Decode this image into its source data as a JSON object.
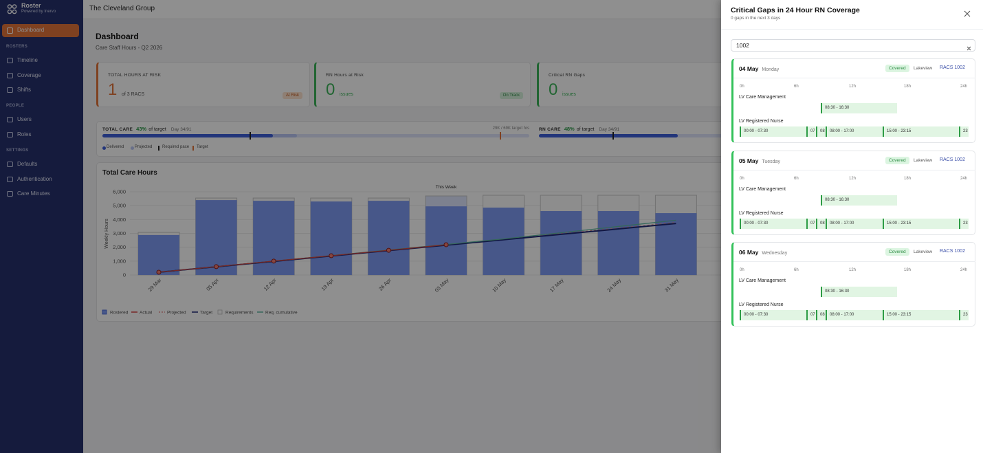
{
  "sidebar": {
    "brand": "Roster",
    "tagline": "Powered by Inervo",
    "active": "Dashboard",
    "groups": [
      {
        "heading": "ROSTERS",
        "items": [
          "Timeline",
          "Coverage",
          "Shifts"
        ]
      },
      {
        "heading": "PEOPLE",
        "items": [
          "Users",
          "Roles"
        ]
      },
      {
        "heading": "SETTINGS",
        "items": [
          "Defaults",
          "Authentication",
          "Care Minutes"
        ]
      }
    ]
  },
  "header": {
    "org": "The Cleveland Group"
  },
  "dashboard": {
    "title": "Dashboard",
    "subtitle": "Care Staff Hours - Q2 2026",
    "cards": [
      {
        "label": "TOTAL HOURS AT RISK",
        "value": 1,
        "detail": "of 3 RACS",
        "badge": "At Risk"
      },
      {
        "label": "RN Hours at Risk",
        "value": 0,
        "detail": "issues",
        "badge": "On Track"
      },
      {
        "label": "Critical RN Gaps",
        "value": 0,
        "detail": "issues"
      }
    ],
    "progress": [
      {
        "label": "TOTAL CARE",
        "percent": "43%",
        "suffix": "of target",
        "day": "Day 34/91",
        "target": "29K / 69K target hrs"
      },
      {
        "label": "RN CARE",
        "percent": "48%",
        "suffix": "of target",
        "day": "Day 34/91"
      }
    ],
    "progress_legend": [
      "Delivered",
      "Projected",
      "Required pace",
      "Target"
    ],
    "chart": {
      "type": "bar",
      "title": "Total Care Hours",
      "ylabel": "Weekly Hours",
      "annotation": "This Week",
      "categories": [
        "29 Mar",
        "05 Apr",
        "12 Apr",
        "19 Apr",
        "26 Apr",
        "03 May",
        "10 May",
        "17 May",
        "24 May",
        "31 May"
      ],
      "ylim": [
        0,
        6000
      ],
      "yticks": [
        0,
        {
          "value": 1000,
          "label": "1,000"
        },
        {
          "value": 2000,
          "label": "2,000"
        },
        {
          "value": 3000,
          "label": "3,000"
        },
        {
          "value": 4000,
          "label": "4,000"
        },
        {
          "value": 5000,
          "label": "5,000"
        },
        {
          "value": 6000,
          "label": "6,000"
        }
      ],
      "grid": true,
      "series": [
        {
          "name": "Rostered",
          "style": "bar",
          "color": "#7f9cf5",
          "values": [
            2880,
            5400,
            5350,
            5300,
            5350,
            4950,
            4860,
            4610,
            4610,
            4460
          ]
        },
        {
          "name": "Actual",
          "style": "line",
          "color": "#d64545",
          "values": [
            200,
            600,
            1000,
            1390,
            1780,
            2180,
            null,
            null,
            null,
            null
          ]
        },
        {
          "name": "Projected",
          "style": "dashed",
          "color": "#e58f8f",
          "values": [
            null,
            null,
            null,
            null,
            null,
            2180,
            2580,
            2980,
            3380,
            3780
          ]
        },
        {
          "name": "Target",
          "style": "line",
          "color": "#1f2a78",
          "values": [
            200,
            590,
            980,
            1370,
            1760,
            2150,
            2540,
            2930,
            3320,
            3710
          ]
        },
        {
          "name": "Requirements",
          "style": "outline",
          "color": "#c9c9c9",
          "values": [
            3070,
            5550,
            5550,
            5550,
            5550,
            5700,
            5750,
            5750,
            5750,
            5750
          ]
        },
        {
          "name": "Req. cumulative",
          "style": "line",
          "color": "#5fb8a0",
          "values": [
            200,
            600,
            1000,
            1400,
            1800,
            2200,
            2600,
            3050,
            3500,
            3950
          ]
        }
      ]
    }
  },
  "drawer": {
    "title": "Critical Gaps in 24 Hour RN Coverage",
    "subtitle": "0 gaps in the next 3 days",
    "search": "1002",
    "axis": [
      "0h",
      "6h",
      "12h",
      "18h",
      "24h"
    ],
    "days": [
      {
        "date": "04 May",
        "weekday": "Monday",
        "status": "Covered",
        "site": "Lakeview",
        "facility": "RACS 1002",
        "rows": [
          {
            "role": "LV Care Management",
            "shifts": [
              "08:30 - 16:30"
            ]
          },
          {
            "role": "LV Registered Nurse",
            "shifts": [
              "00:00 - 07:30",
              "07",
              "08",
              "08:00 - 17:00",
              "15:00 - 23:15",
              "23"
            ]
          }
        ]
      },
      {
        "date": "05 May",
        "weekday": "Tuesday",
        "status": "Covered",
        "site": "Lakeview",
        "facility": "RACS 1002",
        "rows": [
          {
            "role": "LV Care Management",
            "shifts": [
              "08:30 - 16:30"
            ]
          },
          {
            "role": "LV Registered Nurse",
            "shifts": [
              "00:00 - 07:30",
              "07",
              "08",
              "08:00 - 17:00",
              "15:00 - 23:15",
              "23"
            ]
          }
        ]
      },
      {
        "date": "06 May",
        "weekday": "Wednesday",
        "status": "Covered",
        "site": "Lakeview",
        "facility": "RACS 1002",
        "rows": [
          {
            "role": "LV Care Management",
            "shifts": [
              "08:30 - 16:30"
            ]
          },
          {
            "role": "LV Registered Nurse",
            "shifts": [
              "00:00 - 07:30",
              "07",
              "08",
              "08:00 - 17:00",
              "15:00 - 23:15",
              "23"
            ]
          }
        ]
      }
    ]
  }
}
